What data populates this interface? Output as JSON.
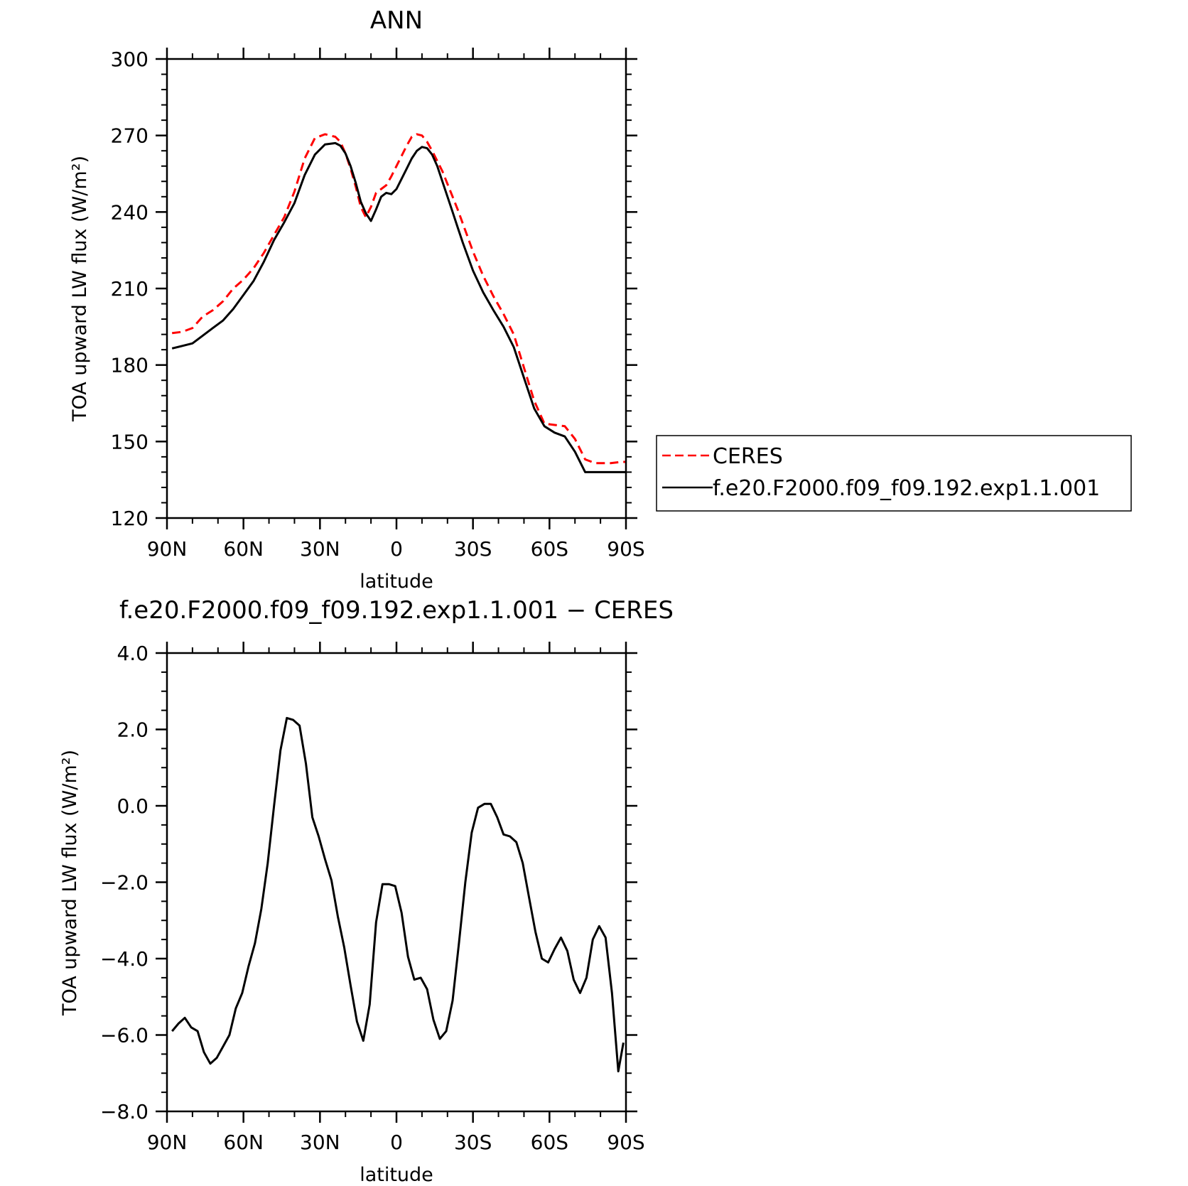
{
  "chart_data": [
    {
      "type": "line",
      "title": "ANN",
      "xlabel": "latitude",
      "ylabel": "TOA upward LW flux (W/m²)",
      "xlim": [
        90,
        -90
      ],
      "ylim": [
        120,
        300
      ],
      "x_ticks": [
        90,
        60,
        30,
        0,
        -30,
        -60,
        -90
      ],
      "x_tick_labels": [
        "90N",
        "60N",
        "30N",
        "0",
        "30S",
        "60S",
        "90S"
      ],
      "y_ticks": [
        120,
        150,
        180,
        210,
        240,
        270,
        300
      ],
      "y_tick_labels": [
        "120",
        "150",
        "180",
        "210",
        "240",
        "270",
        "300"
      ],
      "legend": {
        "position": "right",
        "entries": [
          "CERES",
          "f.e20.F2000.f09_f09.192.exp1.1.001"
        ]
      },
      "series": [
        {
          "name": "CERES",
          "color": "#ff0000",
          "dash": "dashed",
          "x": [
            88,
            84,
            80,
            76,
            72,
            68,
            64,
            60,
            56,
            52,
            48,
            44,
            40,
            36,
            32,
            28,
            24,
            22,
            20,
            18,
            16,
            14,
            12,
            10,
            8,
            6,
            4,
            2,
            0,
            -2,
            -4,
            -6,
            -8,
            -10,
            -12,
            -14,
            -16,
            -18,
            -20,
            -22,
            -24,
            -26,
            -28,
            -30,
            -34,
            -38,
            -42,
            -46,
            -50,
            -54,
            -58,
            -62,
            -66,
            -70,
            -74,
            -78,
            -82,
            -84,
            -88,
            -90
          ],
          "values": [
            192.5,
            193.0,
            194.5,
            199.0,
            201.5,
            205.0,
            210.0,
            213.5,
            218.0,
            224.0,
            231.0,
            238.0,
            248.0,
            261.0,
            269.0,
            270.5,
            269.5,
            267.5,
            263.0,
            257.0,
            250.0,
            242.0,
            238.0,
            242.0,
            247.5,
            249.0,
            250.5,
            254.0,
            258.0,
            262.0,
            266.0,
            269.5,
            270.5,
            270.0,
            267.5,
            264.0,
            260.0,
            256.0,
            251.0,
            246.0,
            241.0,
            235.5,
            230.0,
            224.5,
            215.0,
            207.0,
            200.0,
            192.0,
            179.0,
            166.0,
            157.0,
            156.5,
            156.0,
            151.0,
            143.0,
            141.5,
            141.5,
            141.5,
            142.0,
            142.0
          ]
        },
        {
          "name": "f.e20.F2000.f09_f09.192.exp1.1.001",
          "color": "#000000",
          "dash": "solid",
          "x": [
            88,
            84,
            80,
            76,
            72,
            68,
            64,
            60,
            56,
            52,
            48,
            44,
            40,
            36,
            32,
            28,
            24,
            22,
            20,
            18,
            16,
            14,
            12,
            10,
            8,
            6,
            4,
            2,
            0,
            -2,
            -4,
            -6,
            -8,
            -10,
            -12,
            -14,
            -16,
            -18,
            -20,
            -22,
            -24,
            -26,
            -28,
            -30,
            -34,
            -38,
            -42,
            -46,
            -50,
            -54,
            -58,
            -62,
            -66,
            -70,
            -74,
            -78,
            -82,
            -84,
            -88,
            -90
          ],
          "values": [
            186.5,
            187.5,
            188.5,
            191.5,
            194.5,
            197.5,
            202.0,
            207.5,
            213.0,
            220.5,
            229.0,
            236.0,
            243.5,
            254.5,
            262.5,
            266.5,
            267.0,
            266.0,
            263.0,
            258.0,
            251.5,
            244.0,
            239.5,
            236.5,
            241.0,
            246.0,
            247.5,
            247.0,
            249.0,
            253.0,
            257.0,
            261.0,
            264.0,
            265.5,
            265.0,
            262.5,
            258.0,
            252.0,
            246.0,
            240.0,
            234.0,
            228.0,
            222.5,
            217.0,
            208.5,
            201.5,
            195.0,
            187.0,
            175.0,
            163.0,
            156.0,
            153.5,
            152.0,
            146.0,
            138.0,
            138.0,
            138.0,
            138.0,
            138.0,
            138.0
          ]
        }
      ]
    },
    {
      "type": "line",
      "title": "f.e20.F2000.f09_f09.192.exp1.1.001 − CERES",
      "xlabel": "latitude",
      "ylabel": "TOA upward LW flux (W/m²)",
      "xlim": [
        90,
        -90
      ],
      "ylim": [
        -8.0,
        4.0
      ],
      "x_ticks": [
        90,
        60,
        30,
        0,
        -30,
        -60,
        -90
      ],
      "x_tick_labels": [
        "90N",
        "60N",
        "30N",
        "0",
        "30S",
        "60S",
        "90S"
      ],
      "y_ticks": [
        -8,
        -6,
        -4,
        -2,
        0,
        2,
        4
      ],
      "y_tick_labels": [
        "−8.0",
        "−6.0",
        "−4.0",
        "−2.0",
        "0.0",
        "2.0",
        "4.0"
      ],
      "series": [
        {
          "color": "#000000",
          "dash": "solid",
          "x": [
            88,
            85.5,
            83,
            80.5,
            78,
            75.5,
            73,
            70.5,
            68,
            65.5,
            63,
            60.5,
            58,
            55.5,
            53,
            50.5,
            48,
            45.5,
            43,
            40.5,
            38,
            35.5,
            33,
            30.5,
            28,
            25.5,
            23,
            20.5,
            18,
            15.5,
            13,
            10.5,
            8,
            5.5,
            3,
            0.5,
            -2,
            -4.5,
            -7,
            -9.5,
            -12,
            -14.5,
            -17,
            -19.5,
            -22,
            -24.5,
            -27,
            -29.5,
            -32,
            -34.5,
            -37,
            -39.5,
            -42,
            -44.5,
            -47,
            -49.5,
            -52,
            -54.5,
            -57,
            -59.5,
            -62,
            -64.5,
            -67,
            -69.5,
            -72,
            -74.5,
            -77,
            -79.5,
            -82,
            -84.5,
            -87,
            -89
          ],
          "values": [
            -5.9,
            -5.7,
            -5.55,
            -5.8,
            -5.9,
            -6.45,
            -6.75,
            -6.6,
            -6.3,
            -6.0,
            -5.3,
            -4.9,
            -4.2,
            -3.6,
            -2.7,
            -1.5,
            0.0,
            1.45,
            2.3,
            2.25,
            2.1,
            1.1,
            -0.3,
            -0.8,
            -1.4,
            -1.95,
            -2.9,
            -3.7,
            -4.7,
            -5.65,
            -6.15,
            -5.2,
            -3.05,
            -2.05,
            -2.05,
            -2.1,
            -2.8,
            -3.95,
            -4.55,
            -4.5,
            -4.8,
            -5.6,
            -6.1,
            -5.9,
            -5.1,
            -3.6,
            -2.0,
            -0.7,
            -0.05,
            0.05,
            0.05,
            -0.3,
            -0.75,
            -0.8,
            -0.95,
            -1.5,
            -2.4,
            -3.3,
            -4.0,
            -4.1,
            -3.75,
            -3.45,
            -3.8,
            -4.55,
            -4.9,
            -4.5,
            -3.5,
            -3.15,
            -3.45,
            -4.9,
            -6.95,
            -6.2
          ]
        }
      ]
    }
  ]
}
